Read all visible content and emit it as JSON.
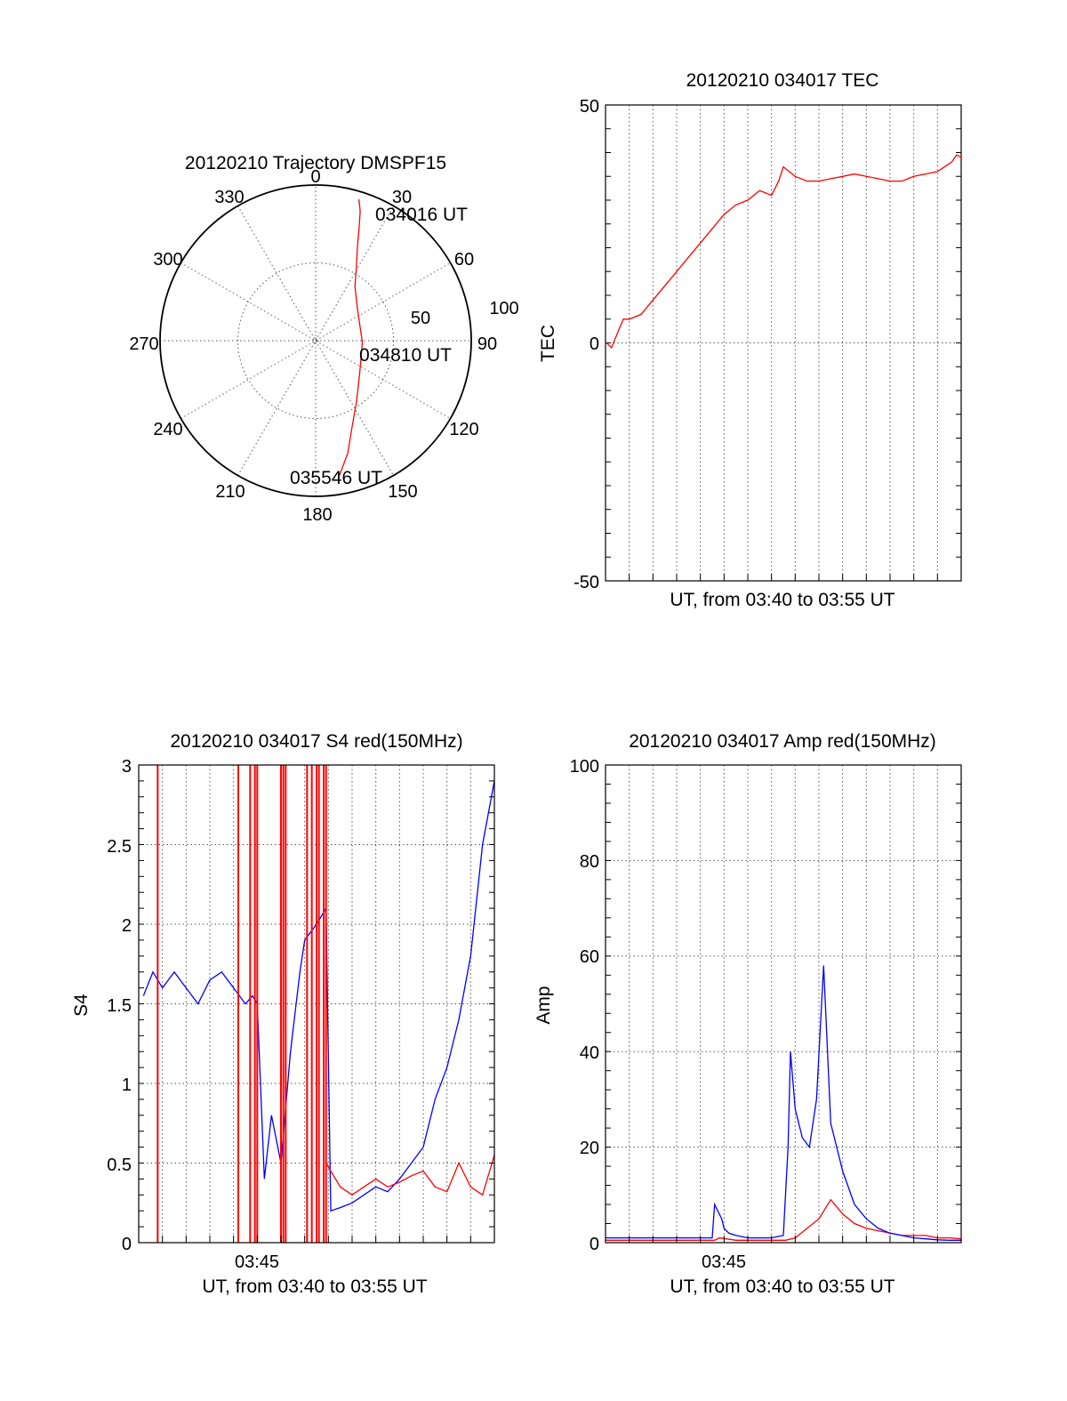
{
  "colors": {
    "red": "#ff0000",
    "blue": "#0000ff",
    "grid": "#555555",
    "axis": "#000000"
  },
  "polar": {
    "title": "20120210 Trajectory DMSPF15",
    "angle_labels": [
      "0",
      "30",
      "60",
      "90",
      "120",
      "150",
      "180",
      "210",
      "240",
      "270",
      "300",
      "330"
    ],
    "radius_labels": [
      "50",
      "100"
    ],
    "time_labels": [
      "034016 UT",
      "034810 UT",
      "035546 UT"
    ]
  },
  "chart_data": [
    {
      "type": "polar-trajectory",
      "title": "20120210 Trajectory DMSPF15",
      "r_unit_max": 100,
      "points": [
        {
          "az": 17,
          "r": 95
        },
        {
          "az": 19,
          "r": 88
        },
        {
          "az": 21,
          "r": 78
        },
        {
          "az": 24,
          "r": 66
        },
        {
          "az": 29,
          "r": 54
        },
        {
          "az": 36,
          "r": 43
        },
        {
          "az": 52,
          "r": 34
        },
        {
          "az": 92,
          "r": 30
        },
        {
          "az": 126,
          "r": 35
        },
        {
          "az": 146,
          "r": 47
        },
        {
          "az": 157,
          "r": 60
        },
        {
          "az": 164,
          "r": 75
        },
        {
          "az": 170,
          "r": 88
        }
      ],
      "annotations": [
        "034016 UT",
        "034810 UT",
        "035546 UT"
      ]
    },
    {
      "type": "line",
      "title": "20120210 034017 TEC",
      "xlabel": "UT, from 03:40 to 03:55 UT",
      "ylabel": "TEC",
      "xlim": [
        0,
        15
      ],
      "ylim": [
        -50,
        50
      ],
      "yticks": [
        "-50",
        "0",
        "50"
      ],
      "series": [
        {
          "color": "red",
          "x": [
            0.05,
            0.25,
            0.5,
            0.75,
            1.0,
            1.5,
            2.0,
            2.5,
            3.0,
            3.5,
            4.0,
            4.5,
            5.0,
            5.5,
            6.0,
            6.5,
            7.0,
            7.3,
            7.5,
            8.0,
            8.5,
            9.0,
            9.5,
            10.0,
            10.5,
            11.0,
            11.5,
            12.0,
            12.5,
            13.0,
            13.5,
            14.0,
            14.3,
            14.6,
            14.8,
            15.0
          ],
          "y": [
            0,
            -1,
            2,
            5,
            5,
            6,
            9,
            12,
            15,
            18,
            21,
            24,
            27,
            29,
            30,
            32,
            31,
            34,
            37,
            35,
            34,
            34,
            34.5,
            35,
            35.5,
            35,
            34.5,
            34,
            34,
            35,
            35.5,
            36,
            37,
            38,
            39.5,
            39
          ]
        }
      ]
    },
    {
      "type": "line",
      "title": "20120210 034017 S4 red(150MHz)",
      "xlabel": "UT, from 03:40 to 03:55 UT",
      "ylabel": "S4",
      "xlim": [
        0,
        15
      ],
      "ylim": [
        0,
        3
      ],
      "yticks": [
        "0",
        "0.5",
        "1",
        "1.5",
        "2",
        "2.5",
        "3"
      ],
      "xticks": [
        "03:45"
      ],
      "series": [
        {
          "color": "blue",
          "x": [
            0.2,
            0.6,
            1.0,
            1.5,
            2.0,
            2.5,
            3.0,
            3.5,
            4.0,
            4.5,
            4.8,
            5.0,
            5.3,
            5.6,
            6.0,
            6.4,
            6.8,
            7.0,
            7.5,
            7.9,
            8.1,
            8.5,
            9.0,
            9.5,
            10.0,
            10.5,
            11.0,
            11.5,
            12.0,
            12.5,
            13.0,
            13.5,
            14.0,
            14.5,
            15.0
          ],
          "y": [
            1.55,
            1.7,
            1.6,
            1.7,
            1.6,
            1.5,
            1.65,
            1.7,
            1.6,
            1.5,
            1.55,
            1.5,
            0.4,
            0.8,
            0.5,
            1.2,
            1.7,
            1.9,
            2.0,
            2.1,
            0.2,
            0.22,
            0.25,
            0.3,
            0.35,
            0.32,
            0.4,
            0.5,
            0.6,
            0.9,
            1.1,
            1.4,
            1.8,
            2.5,
            2.9
          ]
        },
        {
          "color": "red",
          "x": [
            7.9,
            8.1,
            8.5,
            9.0,
            9.5,
            10.0,
            10.5,
            11.0,
            11.5,
            12.0,
            12.5,
            13.0,
            13.5,
            14.0,
            14.5,
            15.0
          ],
          "y": [
            0.5,
            0.45,
            0.35,
            0.3,
            0.35,
            0.4,
            0.35,
            0.38,
            0.42,
            0.45,
            0.35,
            0.32,
            0.5,
            0.35,
            0.3,
            0.55
          ]
        }
      ],
      "red_vertical_marks_x": [
        0.8,
        4.2,
        4.7,
        4.9,
        5.0,
        6.0,
        6.1,
        6.2,
        7.1,
        7.3,
        7.5,
        7.6,
        7.8,
        7.9
      ]
    },
    {
      "type": "line",
      "title": "20120210 034017 Amp red(150MHz)",
      "xlabel": "UT, from 03:40 to 03:55 UT",
      "ylabel": "Amp",
      "xlim": [
        0,
        15
      ],
      "ylim": [
        0,
        100
      ],
      "yticks": [
        "0",
        "20",
        "40",
        "60",
        "80",
        "100"
      ],
      "xticks": [
        "03:45"
      ],
      "series": [
        {
          "color": "red",
          "x": [
            0,
            1,
            2,
            3,
            4,
            4.6,
            4.8,
            5.5,
            6.2,
            7.0,
            7.6,
            8.0,
            8.5,
            9.0,
            9.5,
            10.0,
            10.5,
            11.0,
            11.5,
            12.0,
            12.5,
            13.0,
            13.5,
            14.0,
            14.5,
            15.0
          ],
          "y": [
            0.5,
            0.5,
            0.5,
            0.5,
            0.5,
            0.5,
            1,
            0.5,
            0.5,
            0.5,
            0.5,
            1,
            3,
            5,
            9,
            6,
            4,
            3,
            2.5,
            2,
            1.5,
            1.5,
            1.5,
            1,
            1,
            0.8
          ]
        },
        {
          "color": "blue",
          "x": [
            0,
            1,
            2,
            3,
            4,
            4.5,
            4.6,
            4.7,
            4.9,
            5.0,
            5.2,
            5.5,
            6.0,
            7.0,
            7.5,
            7.7,
            7.8,
            8.0,
            8.3,
            8.6,
            8.9,
            9.2,
            9.5,
            10.0,
            10.5,
            11.0,
            11.5,
            12.0,
            12.5,
            13.0,
            13.5,
            14.0,
            14.5,
            15.0
          ],
          "y": [
            1,
            1,
            1,
            1,
            1,
            1,
            8,
            7,
            5,
            3,
            2,
            1.5,
            1,
            1,
            1.5,
            20,
            40,
            28,
            22,
            20,
            30,
            58,
            25,
            15,
            8,
            5,
            3,
            2,
            1.5,
            1,
            0.8,
            0.6,
            0.5,
            0.5
          ]
        }
      ]
    }
  ]
}
